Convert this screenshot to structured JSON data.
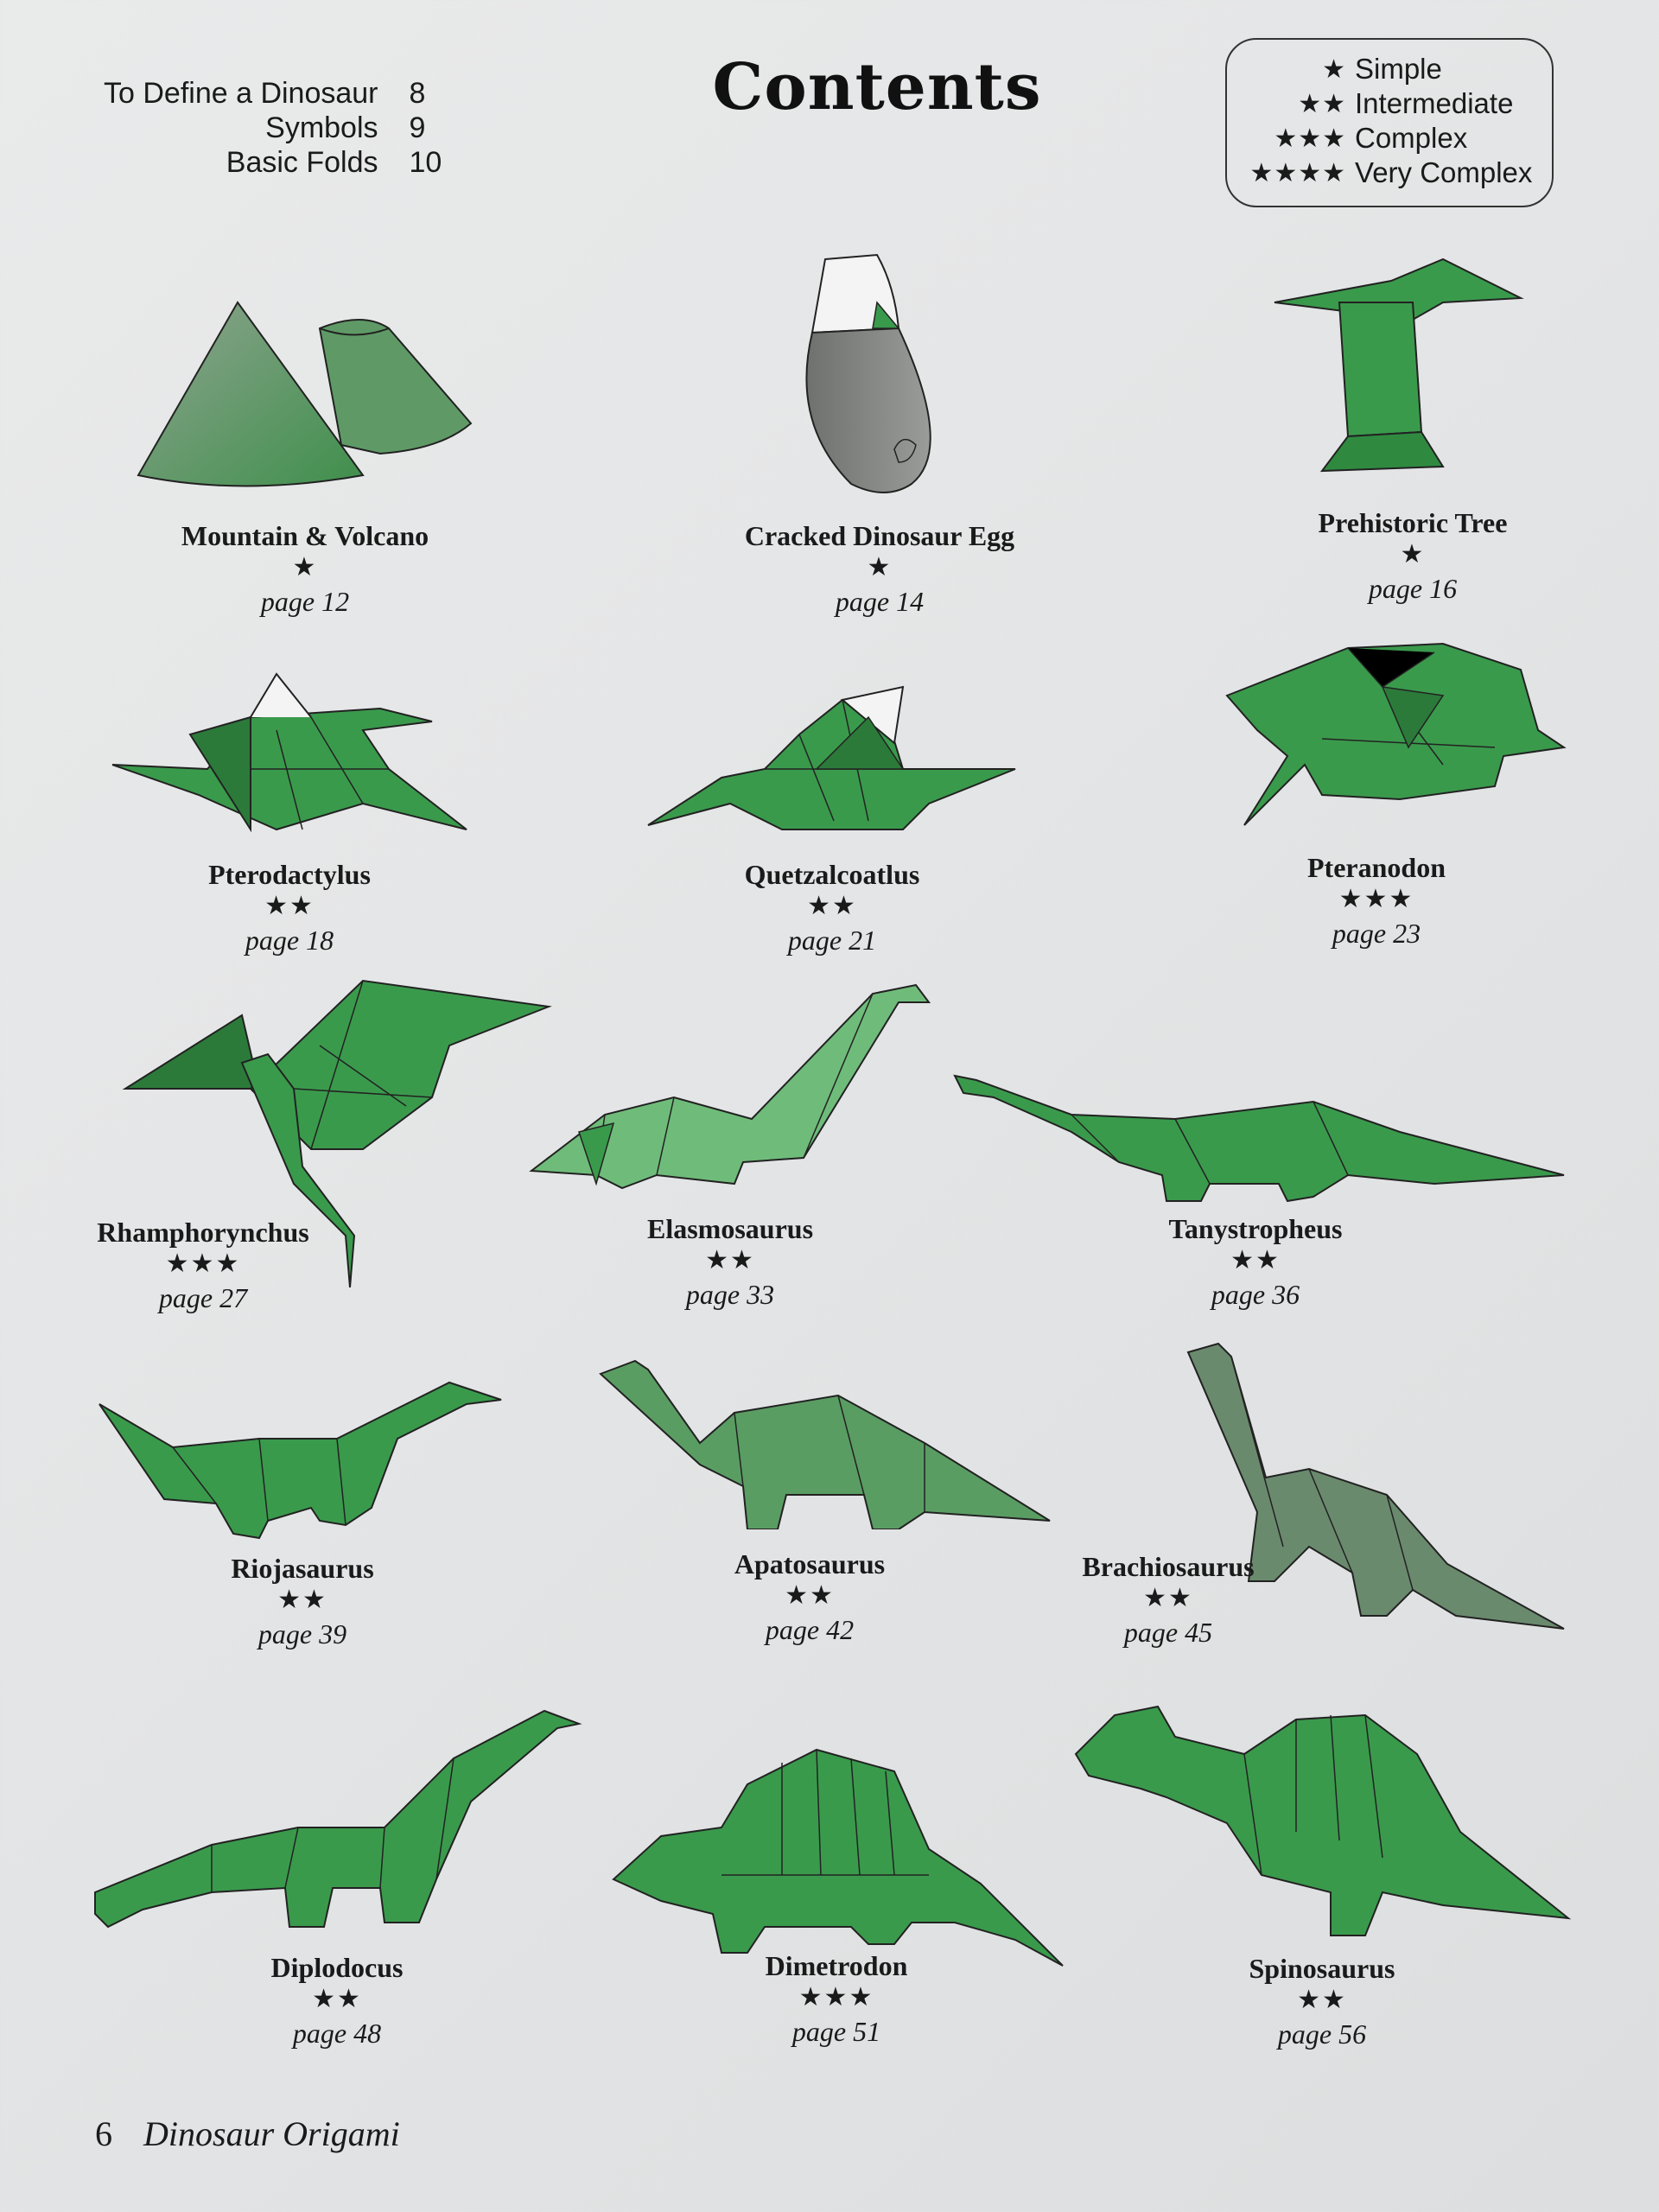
{
  "header": {
    "title": "Contents"
  },
  "toc_items": [
    {
      "label": "To Define a Dinosaur",
      "page": "8"
    },
    {
      "label": "Symbols",
      "page": "9"
    },
    {
      "label": "Basic Folds",
      "page": "10"
    }
  ],
  "legend": [
    {
      "stars": "★",
      "label": "Simple"
    },
    {
      "stars": "★★",
      "label": "Intermediate"
    },
    {
      "stars": "★★★",
      "label": "Complex"
    },
    {
      "stars": "★★★★",
      "label": "Very Complex"
    }
  ],
  "models": [
    {
      "name": "Mountain & Volcano",
      "stars": "★",
      "page": "page 12",
      "icon": "mountain-volcano-icon"
    },
    {
      "name": "Cracked Dinosaur Egg",
      "stars": "★",
      "page": "page 14",
      "icon": "dinosaur-egg-icon"
    },
    {
      "name": "Prehistoric Tree",
      "stars": "★",
      "page": "page 16",
      "icon": "prehistoric-tree-icon"
    },
    {
      "name": "Pterodactylus",
      "stars": "★★",
      "page": "page 18",
      "icon": "pterodactylus-icon"
    },
    {
      "name": "Quetzalcoatlus",
      "stars": "★★",
      "page": "page 21",
      "icon": "quetzalcoatlus-icon"
    },
    {
      "name": "Pteranodon",
      "stars": "★★★",
      "page": "page 23",
      "icon": "pteranodon-icon"
    },
    {
      "name": "Rhamphorynchus",
      "stars": "★★★",
      "page": "page 27",
      "icon": "rhamphorynchus-icon"
    },
    {
      "name": "Elasmosaurus",
      "stars": "★★",
      "page": "page 33",
      "icon": "elasmosaurus-icon"
    },
    {
      "name": "Tanystropheus",
      "stars": "★★",
      "page": "page 36",
      "icon": "tanystropheus-icon"
    },
    {
      "name": "Riojasaurus",
      "stars": "★★",
      "page": "page 39",
      "icon": "riojasaurus-icon"
    },
    {
      "name": "Apatosaurus",
      "stars": "★★",
      "page": "page 42",
      "icon": "apatosaurus-icon"
    },
    {
      "name": "Brachiosaurus",
      "stars": "★★",
      "page": "page 45",
      "icon": "brachiosaurus-icon"
    },
    {
      "name": "Diplodocus",
      "stars": "★★",
      "page": "page 48",
      "icon": "diplodocus-icon"
    },
    {
      "name": "Dimetrodon",
      "stars": "★★★",
      "page": "page 51",
      "icon": "dimetrodon-icon"
    },
    {
      "name": "Spinosaurus",
      "stars": "★★",
      "page": "page 56",
      "icon": "spinosaurus-icon"
    }
  ],
  "footer": {
    "page_number": "6",
    "book_title": "Dinosaur Origami"
  },
  "colors": {
    "green": "#3a9a4c",
    "dark_green": "#2c7a3a",
    "grey": "#7c7f7c",
    "background": "#e6e7e8"
  }
}
